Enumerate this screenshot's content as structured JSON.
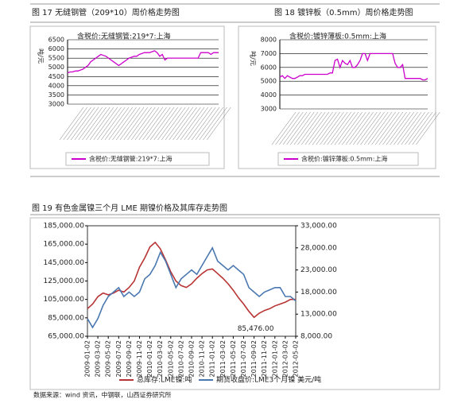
{
  "chart_data": [
    {
      "type": "line",
      "title": "图 17 无缝钢管（209*10）周价格走势图",
      "subtitle": "含税价:无缝钢管:219*7:上海",
      "ylabel": "吨/元",
      "ylim": [
        3000,
        6500
      ],
      "yticks": [
        3000,
        3500,
        4000,
        4500,
        5000,
        5500,
        6000,
        6500
      ],
      "grid": true,
      "series": [
        {
          "name": "含税价:无缝钢管:219*7:上海",
          "color": "#cc00cc",
          "values": [
            4700,
            4750,
            4750,
            4800,
            4800,
            4850,
            4900,
            5000,
            5100,
            5300,
            5400,
            5500,
            5600,
            5700,
            5650,
            5600,
            5500,
            5400,
            5300,
            5200,
            5100,
            5200,
            5300,
            5400,
            5500,
            5550,
            5600,
            5600,
            5700,
            5750,
            5800,
            5800,
            5800,
            5850,
            5900,
            5800,
            5600,
            5700,
            5400,
            5500,
            5500,
            5500,
            5500,
            5500,
            5500,
            5500,
            5500,
            5500,
            5500,
            5500,
            5500,
            5500,
            5800,
            5800,
            5800,
            5800,
            5700,
            5800,
            5800,
            5800
          ]
        }
      ]
    },
    {
      "type": "line",
      "title": "图 18 镀锌板（0.5mm）周价格走势图",
      "subtitle": "含税价:镀锌薄板:0.5mm:上海",
      "ylabel": "吨/元",
      "ylim": [
        3000,
        8000
      ],
      "yticks": [
        3000,
        4000,
        5000,
        6000,
        7000,
        8000
      ],
      "grid": true,
      "series": [
        {
          "name": "含税价:镀锌薄板:0.5mm:上海",
          "color": "#cc00cc",
          "values": [
            5300,
            5400,
            5200,
            5400,
            5300,
            5200,
            5200,
            5300,
            5400,
            5400,
            5500,
            5500,
            5500,
            5500,
            5500,
            5500,
            5500,
            5500,
            5500,
            5500,
            5600,
            5600,
            6500,
            6600,
            6000,
            6500,
            6300,
            6200,
            6500,
            6000,
            6000,
            6200,
            6500,
            7000,
            7000,
            6500,
            7000,
            7000,
            7000,
            7000,
            7000,
            7000,
            7000,
            7000,
            7000,
            7000,
            6300,
            6000,
            6000,
            6200,
            5200,
            5200,
            5200,
            5200,
            5200,
            5200,
            5200,
            5100,
            5100,
            5200
          ]
        }
      ]
    },
    {
      "type": "line",
      "title": "图 19 有色金属镍三个月 LME 期镍价格及其库存走势图",
      "annotation": "85,476.00",
      "categories": [
        "2009-01-02",
        null,
        "2009-03-02",
        null,
        "2009-05-02",
        null,
        "2009-07-02",
        null,
        "2009-09-02",
        null,
        "2009-11-02",
        null,
        "2010-01-02",
        null,
        "2010-03-02",
        null,
        "2010-05-02",
        null,
        "2010-07-02",
        null,
        "2010-09-02",
        null,
        "2010-11-02",
        null,
        "2011-01-02",
        null,
        "2011-03-02",
        null,
        "2011-05-02",
        null,
        "2011-07-02",
        null,
        "2011-09-02",
        null,
        "2011-11-02",
        null,
        "2012-01-02",
        null,
        "2012-03-02",
        null,
        "2012-05-02"
      ],
      "ylim": [
        65000,
        185000
      ],
      "yticks": [
        {
          "value": 65000,
          "label": "65,000.00"
        },
        {
          "value": 85000,
          "label": "85,000.00"
        },
        {
          "value": 105000,
          "label": "105,000.00"
        },
        {
          "value": 125000,
          "label": "125,000.00"
        },
        {
          "value": 145000,
          "label": "145,000.00"
        },
        {
          "value": 165000,
          "label": "165,000.00"
        },
        {
          "value": 185000,
          "label": "185,000.00"
        }
      ],
      "y2lim": [
        8000,
        33000
      ],
      "y2ticks": [
        {
          "value": 8000,
          "label": "8,000.00"
        },
        {
          "value": 13000,
          "label": "13,000.00"
        },
        {
          "value": 18000,
          "label": "18,000.00"
        },
        {
          "value": 23000,
          "label": "23,000.00"
        },
        {
          "value": 28000,
          "label": "28,000.00"
        },
        {
          "value": 33000,
          "label": "33,000.00"
        }
      ],
      "series": [
        {
          "name": "总库存:LME镍:吨",
          "color": "#b83434",
          "values": [
            95000,
            100000,
            108000,
            112000,
            110000,
            112000,
            115000,
            113000,
            118000,
            125000,
            140000,
            150000,
            162000,
            167000,
            160000,
            148000,
            135000,
            125000,
            120000,
            118000,
            122000,
            128000,
            133000,
            137000,
            138000,
            133000,
            128000,
            122000,
            115000,
            107000,
            100000,
            92000,
            85476,
            90000,
            93000,
            95000,
            98000,
            100000,
            102000,
            105000,
            105000
          ]
        },
        {
          "name": "期货收盘价:LME3个月镍 美元/吨",
          "color": "#4a78b0",
          "axis": "y2",
          "values": [
            12000,
            10000,
            12000,
            15000,
            17000,
            18000,
            19000,
            17000,
            18000,
            17000,
            18000,
            21000,
            22000,
            24000,
            27000,
            25000,
            22000,
            19000,
            21000,
            22000,
            23000,
            22000,
            24000,
            26000,
            28000,
            25000,
            24000,
            23000,
            24000,
            23000,
            22000,
            19000,
            18000,
            17000,
            18000,
            18500,
            19000,
            19000,
            17000,
            17000,
            16000
          ]
        }
      ]
    }
  ],
  "source": "数据来源：wind 资讯，中钢联，山西证券研究所"
}
